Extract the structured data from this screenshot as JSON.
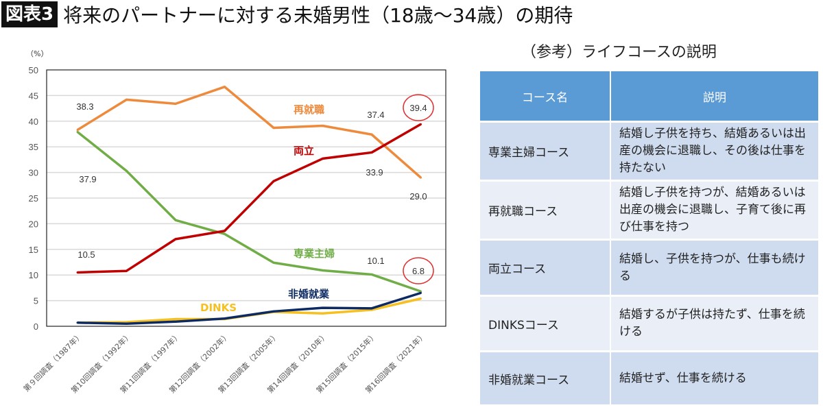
{
  "header": {
    "badge": "図表3",
    "title": "将来のパートナーに対する未婚男性（18歳〜34歳）の期待"
  },
  "chart_data": {
    "type": "line",
    "title": "",
    "unit_label": "（%）",
    "ylim": [
      0,
      50
    ],
    "yticks": [
      0,
      5,
      10,
      15,
      20,
      25,
      30,
      35,
      40,
      45,
      50
    ],
    "grid": true,
    "categories": [
      "第９回調査（1987年）",
      "第10回調査（1992年）",
      "第11回調査（1997年）",
      "第12回調査（2002年）",
      "第13回調査（2005年）",
      "第14回調査（2010年）",
      "第15回調査（2015年）",
      "第16回調査（2021年）"
    ],
    "series": [
      {
        "name": "再就職",
        "color": "#ed8a3c",
        "values": [
          38.3,
          44.2,
          43.4,
          46.7,
          38.7,
          39.1,
          37.4,
          29.0
        ]
      },
      {
        "name": "専業主婦",
        "color": "#70ad47",
        "values": [
          37.9,
          30.3,
          20.7,
          18.0,
          12.4,
          10.9,
          10.1,
          6.8
        ]
      },
      {
        "name": "両立",
        "color": "#c00000",
        "values": [
          10.5,
          10.8,
          17.0,
          18.6,
          28.3,
          32.7,
          33.9,
          39.4
        ]
      },
      {
        "name": "DINKS",
        "color": "#f5c020",
        "values": [
          0.7,
          0.8,
          1.4,
          1.4,
          2.8,
          2.5,
          3.2,
          5.4
        ]
      },
      {
        "name": "非婚就業",
        "color": "#0d2a63",
        "values": [
          0.7,
          0.5,
          0.9,
          1.5,
          2.9,
          3.6,
          3.5,
          6.5
        ]
      }
    ],
    "data_labels": [
      "38.3",
      "37.9",
      "10.5",
      "37.4",
      "33.9",
      "10.1",
      "39.4",
      "29.0",
      "6.8"
    ],
    "highlight_color": "#e03030"
  },
  "table": {
    "title": "（参考）ライフコースの説明",
    "headers": [
      "コース名",
      "説明"
    ],
    "rows": [
      {
        "name": "専業主婦コース",
        "desc": "結婚し子供を持ち、結婚あるいは出産の機会に退職し、その後は仕事を持たない"
      },
      {
        "name": "再就職コース",
        "desc": "結婚し子供を持つが、結婚あるいは出産の機会に退職し、子育て後に再び仕事を持つ"
      },
      {
        "name": "両立コース",
        "desc": "結婚し、子供を持つが、仕事も続ける"
      },
      {
        "name": "DINKSコース",
        "desc": "結婚するが子供は持たず、仕事を続ける"
      },
      {
        "name": "非婚就業コース",
        "desc": "結婚せず、仕事を続ける"
      }
    ],
    "header_color": "#5b9bd5"
  }
}
